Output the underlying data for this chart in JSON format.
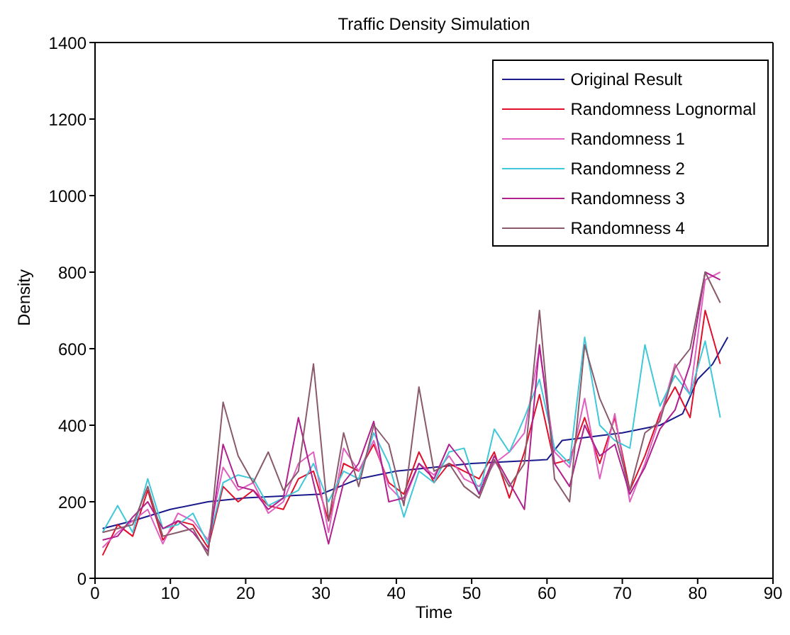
{
  "chart_data": {
    "type": "line",
    "title": "Traffic Density Simulation",
    "xlabel": "Time",
    "ylabel": "Density",
    "xlim": [
      0,
      90
    ],
    "xticks": [
      0,
      10,
      20,
      30,
      40,
      50,
      60,
      70,
      80,
      90
    ],
    "ylim": [
      0,
      1400
    ],
    "yticks": [
      0,
      200,
      400,
      600,
      800,
      1000,
      1200,
      1400
    ],
    "legend": "top right",
    "marker": "none",
    "line_style": "solid",
    "x": [
      1,
      3,
      5,
      7,
      9,
      11,
      13,
      15,
      17,
      19,
      21,
      23,
      25,
      27,
      29,
      31,
      33,
      35,
      37,
      39,
      41,
      43,
      45,
      47,
      49,
      51,
      53,
      55,
      57,
      59,
      61,
      63,
      65,
      67,
      69,
      71,
      73,
      75,
      77,
      79,
      81,
      83
    ],
    "series": [
      {
        "name": "Original Result",
        "color": "#1a1a8c",
        "x": [
          1,
          5,
          10,
          15,
          20,
          30,
          35,
          40,
          50,
          60,
          62,
          70,
          75,
          78,
          80,
          82,
          84
        ],
        "values": [
          130,
          150,
          180,
          200,
          210,
          220,
          260,
          280,
          300,
          310,
          360,
          380,
          400,
          430,
          520,
          560,
          630
        ]
      },
      {
        "name": "Randomness Lognormal",
        "color": "#e0102a",
        "values": [
          60,
          140,
          110,
          230,
          100,
          150,
          140,
          80,
          240,
          200,
          230,
          190,
          180,
          260,
          280,
          150,
          300,
          280,
          350,
          250,
          220,
          330,
          250,
          300,
          280,
          260,
          330,
          210,
          330,
          480,
          300,
          310,
          420,
          300,
          420,
          230,
          320,
          430,
          500,
          420,
          700,
          560
        ]
      },
      {
        "name": "Randomness 1",
        "color": "#e060c0",
        "values": [
          80,
          120,
          150,
          180,
          90,
          170,
          150,
          100,
          290,
          230,
          250,
          170,
          200,
          300,
          330,
          120,
          340,
          280,
          360,
          240,
          200,
          300,
          270,
          320,
          260,
          240,
          300,
          330,
          380,
          600,
          330,
          290,
          470,
          260,
          430,
          200,
          300,
          420,
          560,
          480,
          780,
          800
        ]
      },
      {
        "name": "Randomness 2",
        "color": "#40c8d8",
        "values": [
          120,
          190,
          120,
          260,
          130,
          140,
          170,
          90,
          250,
          270,
          260,
          190,
          210,
          230,
          300,
          200,
          280,
          260,
          380,
          300,
          160,
          280,
          250,
          330,
          340,
          220,
          390,
          330,
          420,
          520,
          340,
          300,
          630,
          400,
          360,
          340,
          610,
          450,
          530,
          480,
          620,
          420
        ]
      },
      {
        "name": "Randomness 3",
        "color": "#b0208f",
        "values": [
          100,
          110,
          160,
          200,
          130,
          150,
          120,
          70,
          350,
          240,
          230,
          180,
          210,
          420,
          250,
          90,
          250,
          300,
          410,
          200,
          210,
          300,
          260,
          350,
          300,
          220,
          320,
          250,
          180,
          610,
          300,
          240,
          400,
          320,
          350,
          220,
          290,
          390,
          440,
          560,
          800,
          780
        ]
      },
      {
        "name": "Randomness 4",
        "color": "#8a5a6a",
        "values": [
          120,
          130,
          140,
          240,
          110,
          120,
          130,
          60,
          460,
          320,
          250,
          330,
          230,
          280,
          560,
          150,
          380,
          240,
          400,
          350,
          190,
          500,
          280,
          300,
          240,
          210,
          310,
          240,
          300,
          700,
          260,
          200,
          610,
          470,
          380,
          230,
          380,
          410,
          550,
          600,
          800,
          720
        ]
      }
    ]
  }
}
